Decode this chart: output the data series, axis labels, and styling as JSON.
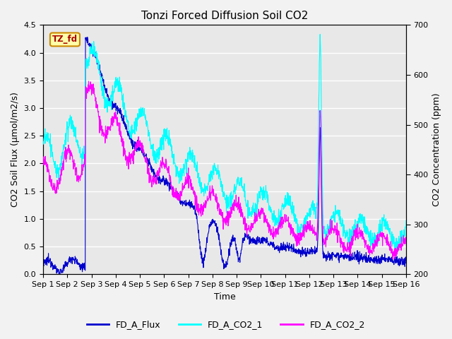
{
  "title": "Tonzi Forced Diffusion Soil CO2",
  "xlabel": "Time",
  "ylabel_left": "CO2 Soil Flux (μmol/m2/s)",
  "ylabel_right": "CO2 Concentration (ppm)",
  "ylim_left": [
    0.0,
    4.5
  ],
  "ylim_right": [
    200,
    700
  ],
  "xtick_labels": [
    "Sep 1",
    "Sep 2",
    "Sep 3",
    "Sep 4",
    "Sep 5",
    "Sep 6",
    "Sep 7",
    "Sep 8",
    "Sep 9",
    "Sep 10",
    "Sep 11",
    "Sep 12",
    "Sep 13",
    "Sep 14",
    "Sep 15",
    "Sep 16"
  ],
  "legend_labels": [
    "FD_A_Flux",
    "FD_A_CO2_1",
    "FD_A_CO2_2"
  ],
  "flux_color": "#0000CD",
  "co2_1_color": "#00FFFF",
  "co2_2_color": "#FF00FF",
  "tag_text": "TZ_fd",
  "tag_bg": "#FFFFAA",
  "tag_border": "#CC8800",
  "tag_text_color": "#AA0000",
  "plot_bg": "#E8E8E8",
  "fig_bg": "#F2F2F2",
  "grid_color": "#FFFFFF",
  "title_fontsize": 11,
  "axis_fontsize": 9,
  "tick_fontsize": 8,
  "legend_fontsize": 9,
  "n_points": 1500
}
